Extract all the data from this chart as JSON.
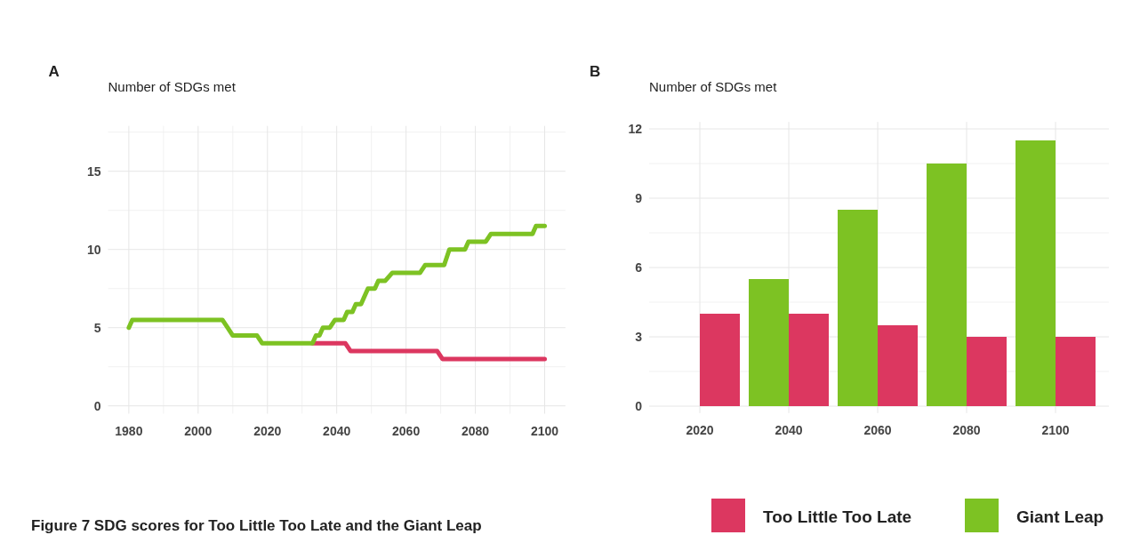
{
  "chart_data": [
    {
      "type": "line",
      "title": "A",
      "ylabel": "Number of SDGs met",
      "xlim": [
        1974,
        2106
      ],
      "ylim": [
        -0.5,
        17.9
      ],
      "xticks": [
        1980,
        2000,
        2020,
        2040,
        2060,
        2080,
        2100
      ],
      "yticks": [
        0,
        5,
        10,
        15
      ],
      "grid": true,
      "legend": false,
      "line_style": "solid",
      "marker": "none",
      "annotations": [
        "Figure 7 SDG scores for Too Little Too Late and the Giant Leap"
      ],
      "series": [
        {
          "color": "#dc3760",
          "x": [
            2033,
            2042.5,
            2044,
            2069,
            2070.5,
            2100
          ],
          "values": [
            4,
            4,
            3.5,
            3.5,
            3,
            3
          ]
        },
        {
          "color": "#7dc223",
          "x": [
            1980,
            1981,
            2007,
            2008.5,
            2010,
            2017,
            2018.5,
            2033,
            2034,
            2035,
            2036,
            2038,
            2039.5,
            2042,
            2043,
            2044.5,
            2045.5,
            2047,
            2049,
            2051,
            2052,
            2054,
            2056,
            2064,
            2065.5,
            2071,
            2072.5,
            2077,
            2078,
            2083,
            2084.5,
            2096.5,
            2097.5,
            2100
          ],
          "values": [
            5,
            5.5,
            5.5,
            5,
            4.5,
            4.5,
            4,
            4,
            4.5,
            4.5,
            5,
            5,
            5.5,
            5.5,
            6,
            6,
            6.5,
            6.5,
            7.5,
            7.5,
            8,
            8,
            8.5,
            8.5,
            9,
            9,
            10,
            10,
            10.5,
            10.5,
            11,
            11,
            11.5,
            11.5
          ]
        }
      ]
    },
    {
      "type": "bar",
      "title": "B",
      "ylabel": "Number of SDGs met",
      "categories": [
        "2020",
        "2040",
        "2060",
        "2080",
        "2100"
      ],
      "ylim": [
        -0.3,
        12.3
      ],
      "yticks": [
        0,
        3,
        6,
        9,
        12
      ],
      "grid": true,
      "legend": "bottom right",
      "series": [
        {
          "name": "Giant Leap",
          "color": "#7dc223",
          "values": [
            null,
            5.5,
            8.5,
            10.5,
            11.5
          ]
        },
        {
          "name": "Too Little Too Late",
          "color": "#dc3760",
          "values": [
            4,
            4,
            3.5,
            3,
            3
          ]
        }
      ]
    }
  ]
}
